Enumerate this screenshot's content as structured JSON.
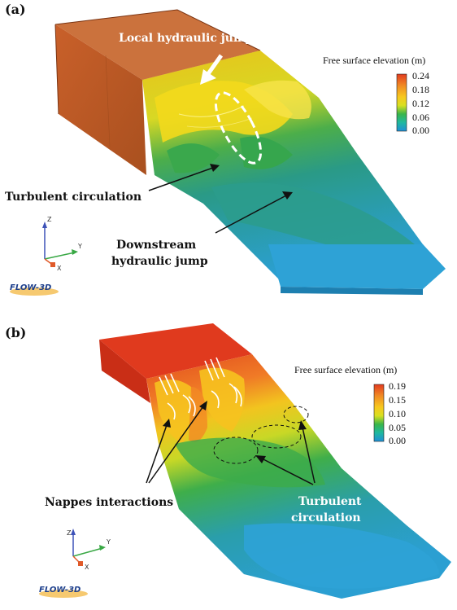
{
  "panel_a": {
    "panel_label": "(a)",
    "annotations": {
      "local_jump": "Local hydraulic jump",
      "turbulent": "Turbulent circulation",
      "downstream_line1": "Downstream",
      "downstream_line2": "hydraulic jump"
    },
    "colorbar": {
      "title": "Free surface elevation (m)",
      "ticks": [
        "0.24",
        "0.18",
        "0.12",
        "0.06",
        "0.00"
      ]
    },
    "axes": {
      "z": "Z",
      "y": "Y",
      "x": "X"
    },
    "logo": "FLOW-3D"
  },
  "panel_b": {
    "panel_label": "(b)",
    "annotations": {
      "nappes": "Nappes interactions",
      "turbulent_line1": "Turbulent",
      "turbulent_line2": "circulation"
    },
    "colorbar": {
      "title": "Free surface elevation (m)",
      "ticks": [
        "0.19",
        "0.15",
        "0.10",
        "0.05",
        "0.00"
      ]
    },
    "axes": {
      "z": "Z",
      "y": "Y",
      "x": "X"
    },
    "logo": "FLOW-3D"
  },
  "colors": {
    "colormap": [
      "#1f8fd6",
      "#1fb8a0",
      "#39b54a",
      "#d8e021",
      "#f7c81e",
      "#f08a24",
      "#e23b1f"
    ],
    "arrow": "#111111",
    "highlight": "#ffffff"
  }
}
